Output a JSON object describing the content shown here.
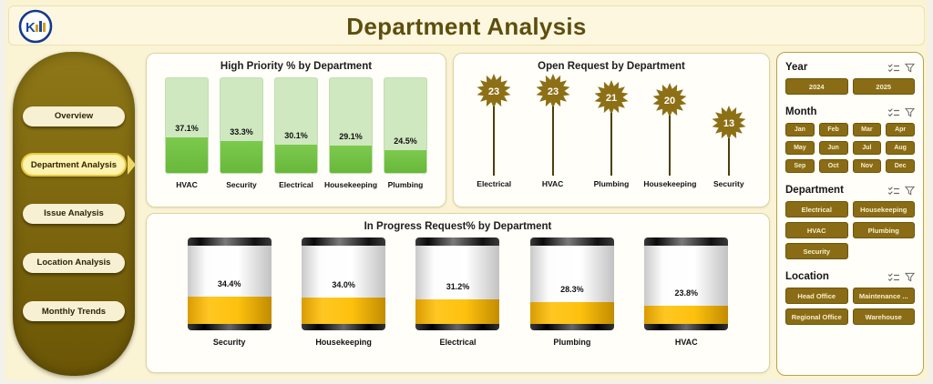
{
  "header": {
    "title": "Department Analysis",
    "logo_text": "K"
  },
  "sidebar": {
    "items": [
      {
        "label": "Overview",
        "active": false
      },
      {
        "label": "Department Analysis",
        "active": true
      },
      {
        "label": "Issue Analysis",
        "active": false
      },
      {
        "label": "Location Analysis",
        "active": false
      },
      {
        "label": "Monthly Trends",
        "active": false
      }
    ]
  },
  "chart_data": [
    {
      "type": "bar",
      "title": "High Priority % by Department",
      "categories": [
        "HVAC",
        "Security",
        "Electrical",
        "Housekeeping",
        "Plumbing"
      ],
      "values": [
        37.1,
        33.3,
        30.1,
        29.1,
        24.5
      ],
      "labels": [
        "37.1%",
        "33.3%",
        "30.1%",
        "29.1%",
        "24.5%"
      ],
      "ylim": [
        0,
        100
      ],
      "bar_color": "#72bf44",
      "bar_bg_color": "#cfe8bf",
      "grid": false,
      "legend": "none"
    },
    {
      "type": "lollipop",
      "title": "Open Request by Department",
      "categories": [
        "Electrical",
        "HVAC",
        "Plumbing",
        "Housekeeping",
        "Security"
      ],
      "values": [
        23,
        23,
        21,
        20,
        13
      ],
      "labels": [
        "23",
        "23",
        "21",
        "20",
        "13"
      ],
      "flower_color": "#8d6f16",
      "grid": false,
      "legend": "none"
    },
    {
      "type": "cylinder",
      "title": "In Progress Request% by Department",
      "categories": [
        "Security",
        "Housekeeping",
        "Electrical",
        "Plumbing",
        "HVAC"
      ],
      "values": [
        34.4,
        34.0,
        31.2,
        28.3,
        23.8
      ],
      "labels": [
        "34.4%",
        "34.0%",
        "31.2%",
        "28.3%",
        "23.8%"
      ],
      "ylim": [
        0,
        100
      ],
      "fill_color": "#f2b705",
      "grid": false,
      "legend": "none"
    }
  ],
  "filters": [
    {
      "name": "year",
      "label": "Year",
      "columns": 2,
      "options": [
        "2024",
        "2025"
      ]
    },
    {
      "name": "month",
      "label": "Month",
      "columns": 4,
      "options": [
        "Jan",
        "Feb",
        "Mar",
        "Apr",
        "May",
        "Jun",
        "Jul",
        "Aug",
        "Sep",
        "Oct",
        "Nov",
        "Dec"
      ]
    },
    {
      "name": "department",
      "label": "Department",
      "columns": 2,
      "options": [
        "Electrical",
        "Housekeeping",
        "HVAC",
        "Plumbing",
        "Security"
      ]
    },
    {
      "name": "location",
      "label": "Location",
      "columns": 2,
      "options": [
        "Head Office",
        "Maintenance ...",
        "Regional Office",
        "Warehouse"
      ]
    }
  ],
  "colors": {
    "background": "#faf3d4",
    "sidebar": "#7b650d",
    "accent_olive": "#8a6c16",
    "bar_green": "#72bf44",
    "bar_green_light": "#cfe8bf",
    "cylinder_amber": "#f2b705",
    "title_text": "#5e4e0e"
  }
}
